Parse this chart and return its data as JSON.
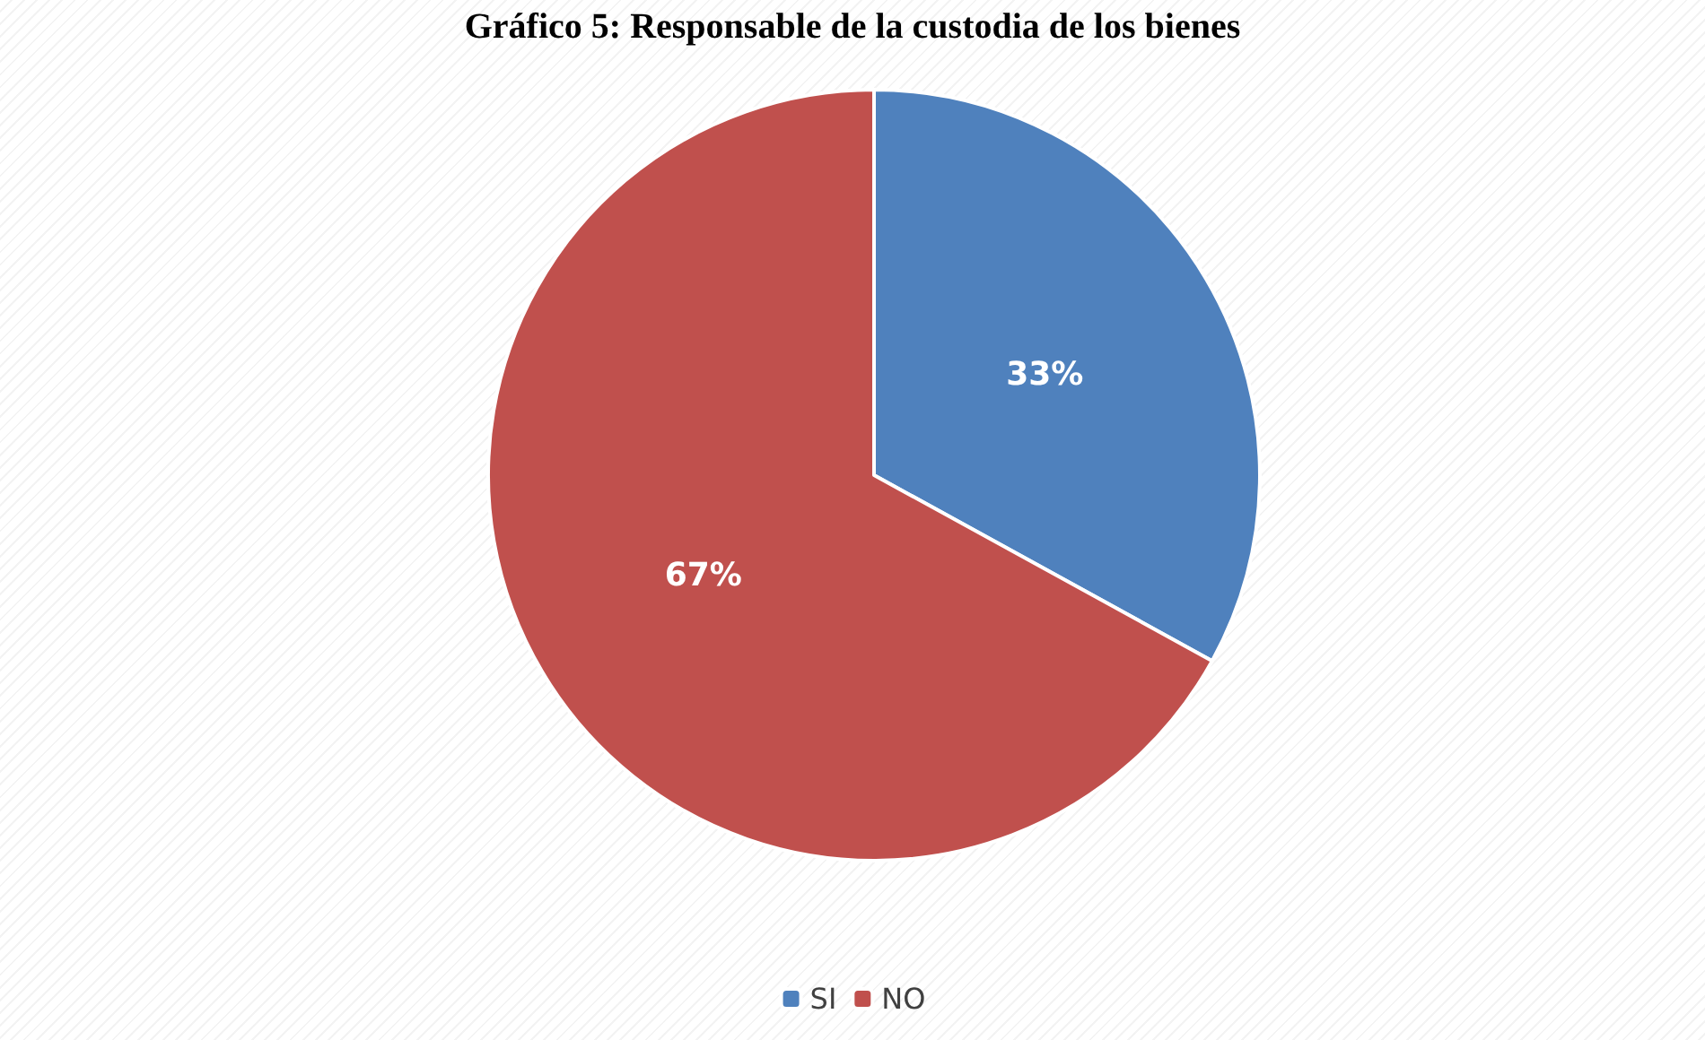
{
  "chart_data": {
    "type": "pie",
    "title": "Gráfico 5: Responsable de la custodia de los bienes",
    "categories": [
      "SI",
      "NO"
    ],
    "values": [
      33,
      67
    ],
    "colors": [
      "#4f81bd",
      "#c0504d"
    ],
    "value_labels": [
      "33%",
      "67%"
    ],
    "legend": "bottom"
  }
}
